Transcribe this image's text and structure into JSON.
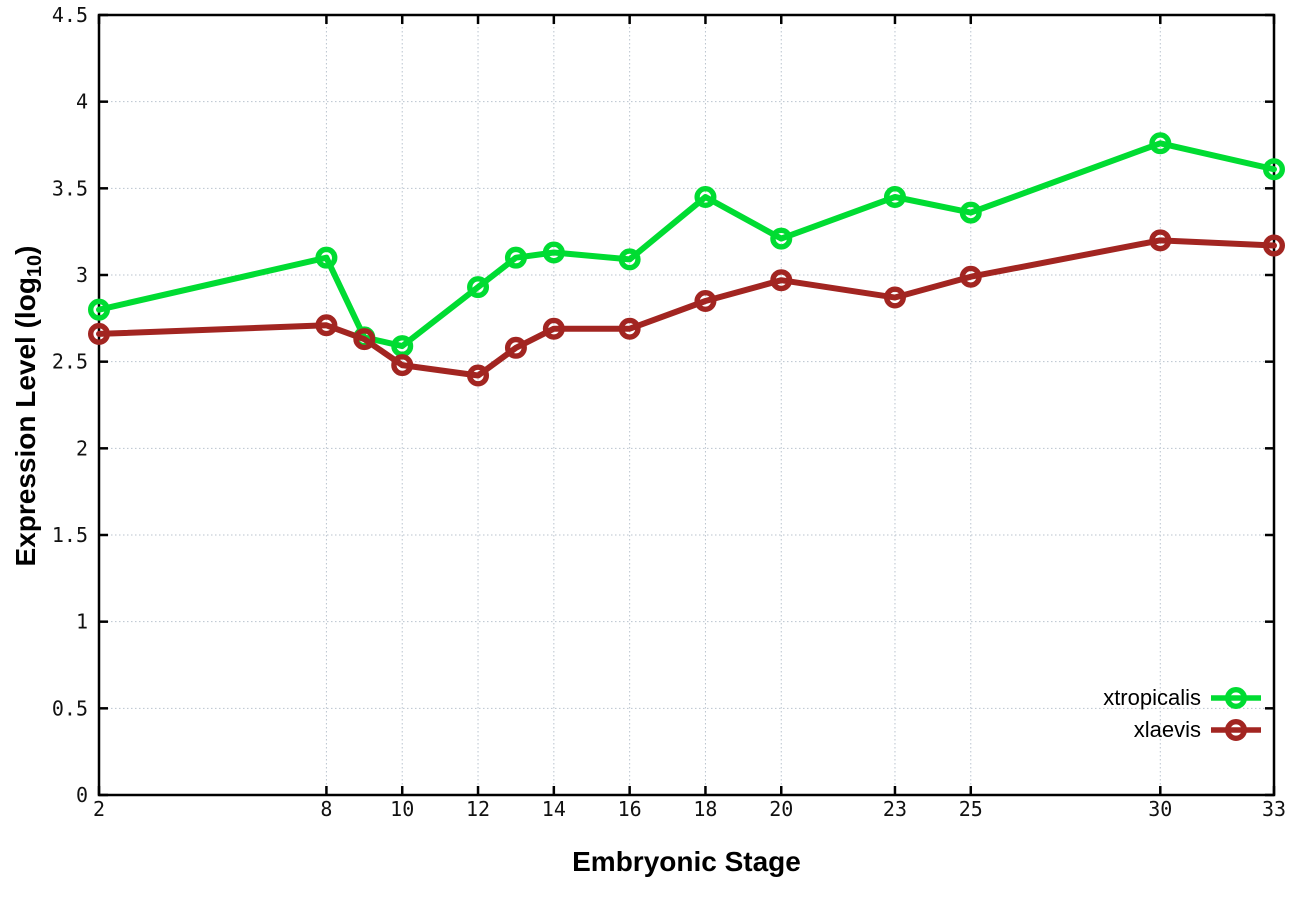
{
  "chart_data": {
    "type": "line",
    "title": "",
    "xlabel": "Embryonic Stage",
    "ylabel": {
      "prefix": "Expression Level (log",
      "sub": "10",
      "suffix": ")"
    },
    "x": [
      2,
      8,
      9,
      10,
      12,
      13,
      14,
      16,
      18,
      20,
      23,
      25,
      30,
      33
    ],
    "xticks": [
      2,
      8,
      10,
      12,
      14,
      16,
      18,
      20,
      23,
      25,
      30,
      33
    ],
    "xtick_labels": [
      "2",
      "8",
      "10",
      "12",
      "14",
      "16",
      "18",
      "20",
      "23",
      "25",
      "30",
      "33"
    ],
    "yticks": [
      0,
      0.5,
      1,
      1.5,
      2,
      2.5,
      3,
      3.5,
      4,
      4.5
    ],
    "ytick_labels": [
      "0",
      "0.5",
      "1",
      "1.5",
      "2",
      "2.5",
      "3",
      "3.5",
      "4",
      "4.5"
    ],
    "xlim": [
      2,
      33
    ],
    "ylim": [
      0,
      4.5
    ],
    "grid": true,
    "grid_color": "#b9c3ce",
    "background": "#ffffff",
    "marker": "open-circle",
    "legend_position": "bottom-right",
    "series": [
      {
        "name": "xtropicalis",
        "color": "#00dc32",
        "values": [
          2.8,
          3.1,
          2.64,
          2.59,
          2.93,
          3.1,
          3.13,
          3.09,
          3.45,
          3.21,
          3.45,
          3.36,
          3.76,
          3.61
        ]
      },
      {
        "name": "xlaevis",
        "color": "#a22521",
        "values": [
          2.66,
          2.71,
          2.63,
          2.48,
          2.42,
          2.58,
          2.69,
          2.69,
          2.85,
          2.97,
          2.87,
          2.99,
          3.2,
          3.17
        ]
      }
    ]
  }
}
